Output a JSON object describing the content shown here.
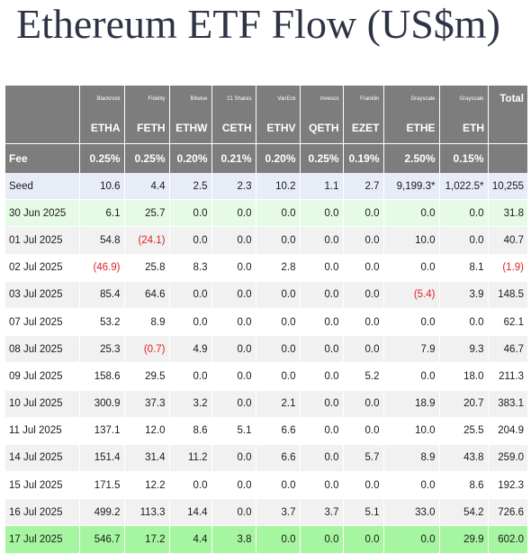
{
  "title": "Ethereum ETF Flow (US$m)",
  "colors": {
    "negative": "#e02020",
    "header_bg": "#7d7d7d",
    "seed_bg": "#e7ecf7",
    "latest_bg": "#a6f5a0",
    "first_bg": "#e6fbe6"
  },
  "header": {
    "issuers": [
      "Blackrock",
      "Fidelity",
      "Bitwise",
      "21 Shares",
      "VanEck",
      "Invesco",
      "Franklin",
      "Grayscale",
      "Grayscale"
    ],
    "total_label": "Total",
    "tickers": [
      "ETHA",
      "FETH",
      "ETHW",
      "CETH",
      "ETHV",
      "QETH",
      "EZET",
      "ETHE",
      "ETH"
    ],
    "fee_label": "Fee",
    "fees": [
      "0.25%",
      "0.25%",
      "0.20%",
      "0.21%",
      "0.20%",
      "0.25%",
      "0.19%",
      "2.50%",
      "0.15%"
    ]
  },
  "rows": [
    {
      "label": "Seed",
      "values": [
        "10.6",
        "4.4",
        "2.5",
        "2.3",
        "10.2",
        "1.1",
        "2.7",
        "9,199.3*",
        "1,022.5*"
      ],
      "total": "10,255"
    },
    {
      "label": "30 Jun 2025",
      "values": [
        "6.1",
        "25.7",
        "0.0",
        "0.0",
        "0.0",
        "0.0",
        "0.0",
        "0.0",
        "0.0"
      ],
      "total": "31.8"
    },
    {
      "label": "01 Jul 2025",
      "values": [
        "54.8",
        "(24.1)",
        "0.0",
        "0.0",
        "0.0",
        "0.0",
        "0.0",
        "10.0",
        "0.0"
      ],
      "total": "40.7"
    },
    {
      "label": "02 Jul 2025",
      "values": [
        "(46.9)",
        "25.8",
        "8.3",
        "0.0",
        "2.8",
        "0.0",
        "0.0",
        "0.0",
        "8.1"
      ],
      "total": "(1.9)"
    },
    {
      "label": "03 Jul 2025",
      "values": [
        "85.4",
        "64.6",
        "0.0",
        "0.0",
        "0.0",
        "0.0",
        "0.0",
        "(5.4)",
        "3.9"
      ],
      "total": "148.5"
    },
    {
      "label": "07 Jul 2025",
      "values": [
        "53.2",
        "8.9",
        "0.0",
        "0.0",
        "0.0",
        "0.0",
        "0.0",
        "0.0",
        "0.0"
      ],
      "total": "62.1"
    },
    {
      "label": "08 Jul 2025",
      "values": [
        "25.3",
        "(0.7)",
        "4.9",
        "0.0",
        "0.0",
        "0.0",
        "0.0",
        "7.9",
        "9.3"
      ],
      "total": "46.7"
    },
    {
      "label": "09 Jul 2025",
      "values": [
        "158.6",
        "29.5",
        "0.0",
        "0.0",
        "0.0",
        "0.0",
        "5.2",
        "0.0",
        "18.0"
      ],
      "total": "211.3"
    },
    {
      "label": "10 Jul 2025",
      "values": [
        "300.9",
        "37.3",
        "3.2",
        "0.0",
        "2.1",
        "0.0",
        "0.0",
        "18.9",
        "20.7"
      ],
      "total": "383.1"
    },
    {
      "label": "11 Jul 2025",
      "values": [
        "137.1",
        "12.0",
        "8.6",
        "5.1",
        "6.6",
        "0.0",
        "0.0",
        "10.0",
        "25.5"
      ],
      "total": "204.9"
    },
    {
      "label": "14 Jul 2025",
      "values": [
        "151.4",
        "31.4",
        "11.2",
        "0.0",
        "6.6",
        "0.0",
        "5.7",
        "8.9",
        "43.8"
      ],
      "total": "259.0"
    },
    {
      "label": "15 Jul 2025",
      "values": [
        "171.5",
        "12.2",
        "0.0",
        "0.0",
        "0.0",
        "0.0",
        "0.0",
        "0.0",
        "8.6"
      ],
      "total": "192.3"
    },
    {
      "label": "16 Jul 2025",
      "values": [
        "499.2",
        "113.3",
        "14.4",
        "0.0",
        "3.7",
        "3.7",
        "5.1",
        "33.0",
        "54.2"
      ],
      "total": "726.6"
    },
    {
      "label": "17 Jul 2025",
      "values": [
        "546.7",
        "17.2",
        "4.4",
        "3.8",
        "0.0",
        "0.0",
        "0.0",
        "0.0",
        "29.9"
      ],
      "total": "602.0"
    }
  ]
}
